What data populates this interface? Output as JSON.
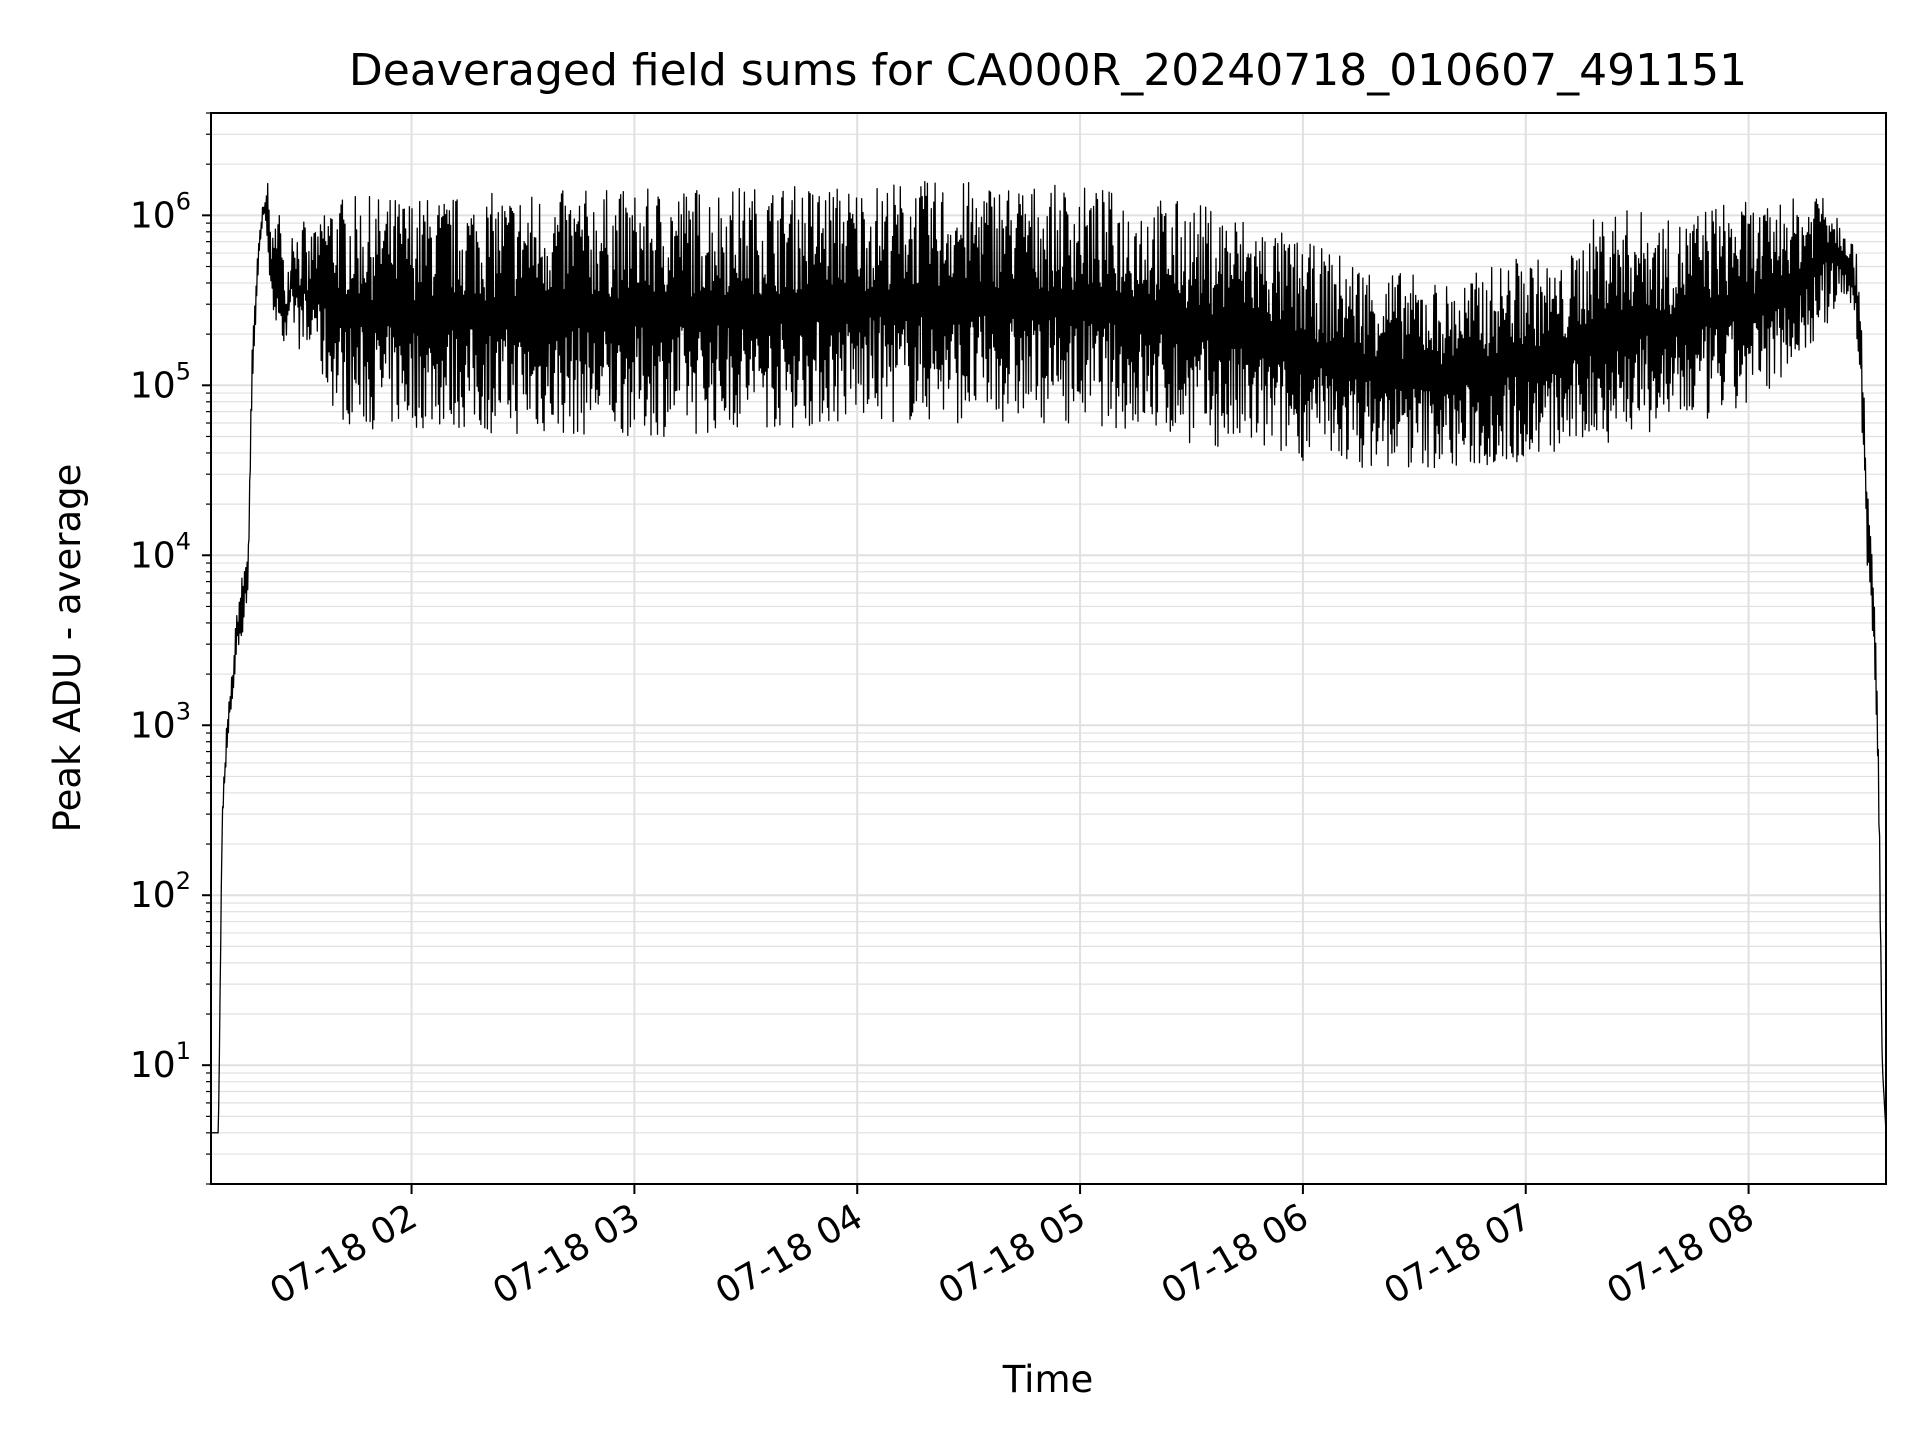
{
  "chart_data": {
    "type": "line",
    "title": "Deaveraged field sums for CA000R_20240718_010607_491151",
    "xlabel": "Time",
    "ylabel": "Peak ADU - average",
    "yscale": "log",
    "grid": true,
    "line_color": "#000000",
    "grid_color": "#e0e0e0",
    "xlim": [
      "07-18 01:06",
      "07-18 08:37"
    ],
    "ylim": [
      2,
      4000000
    ],
    "x_ticks": [
      {
        "value": "07-18 02:00",
        "label": "07-18 02"
      },
      {
        "value": "07-18 03:00",
        "label": "07-18 03"
      },
      {
        "value": "07-18 04:00",
        "label": "07-18 04"
      },
      {
        "value": "07-18 05:00",
        "label": "07-18 05"
      },
      {
        "value": "07-18 06:00",
        "label": "07-18 06"
      },
      {
        "value": "07-18 07:00",
        "label": "07-18 07"
      },
      {
        "value": "07-18 08:00",
        "label": "07-18 08"
      }
    ],
    "y_ticks": [
      {
        "value": 10,
        "base": "10",
        "exp": "1"
      },
      {
        "value": 100,
        "base": "10",
        "exp": "2"
      },
      {
        "value": 1000,
        "base": "10",
        "exp": "3"
      },
      {
        "value": 10000,
        "base": "10",
        "exp": "4"
      },
      {
        "value": 100000,
        "base": "10",
        "exp": "5"
      },
      {
        "value": 1000000,
        "base": "10",
        "exp": "6"
      }
    ],
    "series": [
      {
        "x": [
          "07-18 01:06",
          "07-18 01:07",
          "07-18 01:08",
          "07-18 01:09",
          "07-18 01:10",
          "07-18 01:11",
          "07-18 01:12",
          "07-18 01:13",
          "07-18 01:14",
          "07-18 01:15",
          "07-18 01:16",
          "07-18 01:17",
          "07-18 01:18",
          "07-18 01:19",
          "07-18 01:20",
          "07-18 01:21",
          "07-18 01:22",
          "07-18 01:23",
          "07-18 01:24",
          "07-18 01:25",
          "07-18 01:26",
          "07-18 01:27",
          "07-18 01:28",
          "07-18 01:29",
          "07-18 01:30",
          "07-18 01:31",
          "07-18 01:32",
          "07-18 01:33",
          "07-18 01:34",
          "07-18 01:35",
          "07-18 01:36",
          "07-18 01:38",
          "07-18 01:40",
          "07-18 01:42",
          "07-18 01:44",
          "07-18 01:46",
          "07-18 01:48",
          "07-18 01:50",
          "07-18 01:52",
          "07-18 01:54",
          "07-18 01:56",
          "07-18 01:58",
          "07-18 02:00",
          "07-18 02:10",
          "07-18 02:20",
          "07-18 02:30",
          "07-18 02:40",
          "07-18 02:50",
          "07-18 03:00",
          "07-18 03:10",
          "07-18 03:20",
          "07-18 03:30",
          "07-18 03:40",
          "07-18 03:50",
          "07-18 04:00",
          "07-18 04:10",
          "07-18 04:20",
          "07-18 04:30",
          "07-18 04:40",
          "07-18 04:50",
          "07-18 05:00",
          "07-18 05:10",
          "07-18 05:20",
          "07-18 05:30",
          "07-18 05:40",
          "07-18 05:50",
          "07-18 06:00",
          "07-18 06:10",
          "07-18 06:20",
          "07-18 06:30",
          "07-18 06:40",
          "07-18 06:50",
          "07-18 07:00",
          "07-18 07:10",
          "07-18 07:20",
          "07-18 07:30",
          "07-18 07:40",
          "07-18 07:50",
          "07-18 08:00",
          "07-18 08:05",
          "07-18 08:10",
          "07-18 08:15",
          "07-18 08:20",
          "07-18 08:24",
          "07-18 08:26",
          "07-18 08:28",
          "07-18 08:30",
          "07-18 08:32",
          "07-18 08:34",
          "07-18 08:35",
          "07-18 08:36",
          "07-18 08:37"
        ],
        "upper": [
          4,
          4,
          4,
          300,
          900,
          1500,
          2500,
          5000,
          7000,
          9000,
          12000,
          150000,
          400000,
          800000,
          1200000,
          1800000,
          1000000,
          700000,
          2000000,
          700000,
          450000,
          600000,
          1100000,
          900000,
          700000,
          1000000,
          600000,
          800000,
          1000000,
          700000,
          1300000,
          1300000,
          1300000,
          1300000,
          1300000,
          1300000,
          1300000,
          1300000,
          1300000,
          1300000,
          1300000,
          1300000,
          1300000,
          1300000,
          1350000,
          1400000,
          1400000,
          1450000,
          1400000,
          1500000,
          1500000,
          1500000,
          1500000,
          1550000,
          1500000,
          1600000,
          1600000,
          1600000,
          1600000,
          1500000,
          1500000,
          1400000,
          1300000,
          1200000,
          1100000,
          900000,
          700000,
          600000,
          500000,
          450000,
          400000,
          500000,
          600000,
          500000,
          1100000,
          1100000,
          900000,
          1200000,
          1200000,
          1100000,
          1300000,
          1200000,
          1800000,
          1100000,
          1000000,
          700000,
          500000,
          30000,
          5000,
          800,
          10,
          4
        ],
        "lower": [
          4,
          4,
          4,
          250,
          500,
          1000,
          1500,
          2500,
          3000,
          4000,
          6000,
          80000,
          200000,
          600000,
          900000,
          800000,
          350000,
          120000,
          300000,
          180000,
          150000,
          160000,
          200000,
          200000,
          150000,
          200000,
          130000,
          150000,
          200000,
          150000,
          100000,
          80000,
          65000,
          60000,
          58000,
          56000,
          55000,
          55000,
          55000,
          55000,
          55000,
          55000,
          55000,
          55000,
          52000,
          50000,
          50000,
          50000,
          50000,
          50000,
          52000,
          55000,
          55000,
          57000,
          60000,
          60000,
          60000,
          60000,
          60000,
          60000,
          60000,
          55000,
          50000,
          45000,
          40000,
          38000,
          36000,
          34000,
          32000,
          32000,
          32000,
          32000,
          35000,
          40000,
          45000,
          50000,
          55000,
          60000,
          70000,
          90000,
          120000,
          150000,
          200000,
          300000,
          300000,
          300000,
          100000,
          8000,
          2000,
          300,
          10,
          4
        ]
      }
    ]
  }
}
